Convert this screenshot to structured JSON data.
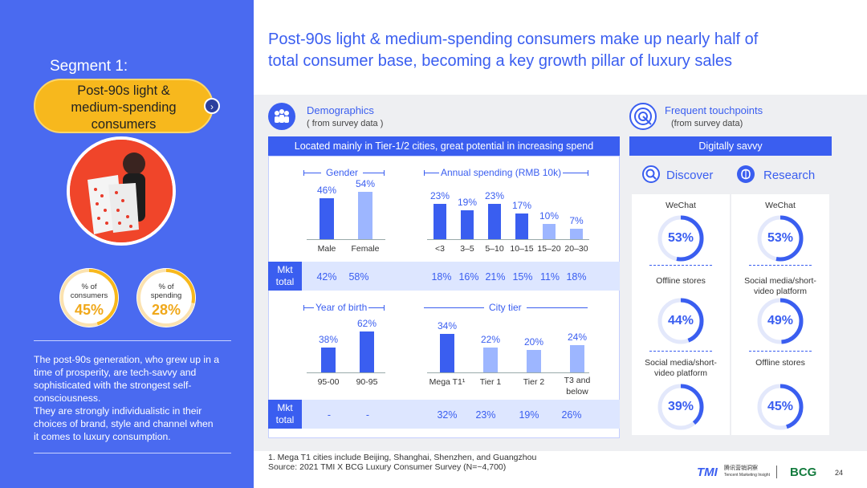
{
  "left": {
    "segment": "Segment 1:",
    "pill": [
      "Post-90s light &",
      "medium-spending",
      "consumers"
    ],
    "stat_consumers": {
      "label": [
        "% of",
        "consumers"
      ],
      "value": "45%",
      "fraction": 0.45
    },
    "stat_spending": {
      "label": [
        "% of",
        "spending"
      ],
      "value": "28%",
      "fraction": 0.28
    },
    "description": [
      "The post-90s generation, who grew up in a",
      "time of prosperity, are tech-savvy and",
      "sophisticated with the strongest self-",
      "consciousness.",
      "They are strongly individualistic in their",
      "choices of brand, style and channel when",
      "it comes to luxury consumption."
    ]
  },
  "title": [
    "Post-90s light & medium-spending consumers make up nearly half of",
    "total consumer base, becoming a key growth pillar of luxury sales"
  ],
  "demographics": {
    "title": "Demographics",
    "subtitle": "( from survey data )",
    "banner": "Located mainly in Tier-1/2 cities, great potential in increasing spend",
    "mkt_label": [
      "Mkt",
      "total"
    ]
  },
  "chart_data": [
    {
      "type": "bar",
      "title": "Gender",
      "categories": [
        "Male",
        "Female"
      ],
      "values": [
        46,
        54
      ],
      "labels": [
        "46%",
        "54%"
      ],
      "mkt_total": [
        "42%",
        "58%"
      ]
    },
    {
      "type": "bar",
      "title": "Annual spending (RMB 10k)",
      "categories": [
        "<3",
        "3–5",
        "5–10",
        "10–15",
        "15–20",
        "20–30"
      ],
      "values": [
        23,
        19,
        23,
        17,
        10,
        7
      ],
      "labels": [
        "23%",
        "19%",
        "23%",
        "17%",
        "10%",
        "7%"
      ],
      "mkt_total": [
        "18%",
        "16%",
        "21%",
        "15%",
        "11%",
        "18%"
      ]
    },
    {
      "type": "bar",
      "title": "Year of birth",
      "categories": [
        "95-00",
        "90-95"
      ],
      "values": [
        38,
        62
      ],
      "labels": [
        "38%",
        "62%"
      ],
      "mkt_total": [
        "-",
        "-"
      ]
    },
    {
      "type": "bar",
      "title": "City tier",
      "categories": [
        "Mega T1¹",
        "Tier 1",
        "Tier 2",
        "T3 and below"
      ],
      "values": [
        34,
        22,
        20,
        24
      ],
      "labels": [
        "34%",
        "22%",
        "20%",
        "24%"
      ],
      "mkt_total": [
        "32%",
        "23%",
        "19%",
        "26%"
      ]
    }
  ],
  "touchpoints": {
    "title": "Frequent touchpoints",
    "subtitle": "(from survey data)",
    "banner": "Digitally savvy",
    "discover": {
      "label": "Discover",
      "items": [
        {
          "name": "WeChat",
          "value": "53%",
          "fraction": 0.53
        },
        {
          "name": "Offline stores",
          "value": "44%",
          "fraction": 0.44
        },
        {
          "name": "Social media/short-video platform",
          "value": "39%",
          "fraction": 0.39
        }
      ]
    },
    "research": {
      "label": "Research",
      "items": [
        {
          "name": "WeChat",
          "value": "53%",
          "fraction": 0.53
        },
        {
          "name": "Social media/short-video platform",
          "value": "49%",
          "fraction": 0.49
        },
        {
          "name": "Offline stores",
          "value": "45%",
          "fraction": 0.45
        }
      ]
    }
  },
  "footnote": [
    "1. Mega T1 cities include Beijing, Shanghai, Shenzhen, and Guangzhou",
    "Source: 2021 TMI X BCG Luxury Consumer Survey (N=~4,700)"
  ],
  "logos": {
    "tmi": "TMI",
    "tmi_cn": "腾讯营销洞察",
    "tmi_en": "Tencent Marketing Insight",
    "bcg": "BCG"
  },
  "page_number": "24",
  "colors": {
    "accent": "#3a5ef0",
    "gold": "#f7b81d",
    "bar_dark": "#3a5ef0",
    "bar_light": "#9db6ff"
  }
}
